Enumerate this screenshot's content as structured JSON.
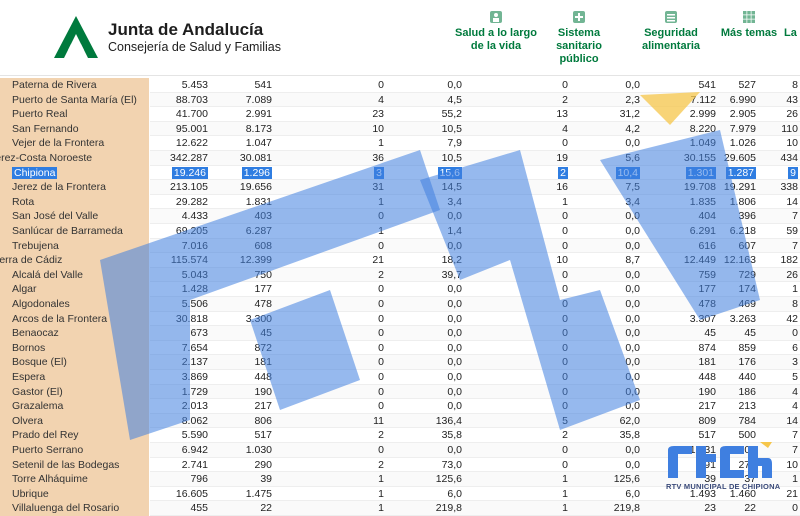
{
  "header": {
    "title": "Junta de Andalucía",
    "subtitle": "Consejería de Salud y Familias",
    "brand_color": "#007a3d"
  },
  "nav": [
    {
      "label": "Salud a lo largo\nde la vida",
      "icon": "person-icon"
    },
    {
      "label": "Sistema\nsanitario\npúblico",
      "icon": "hospital-icon"
    },
    {
      "label": "Seguridad\nalimentaria",
      "icon": "food-icon"
    },
    {
      "label": "Más temas",
      "icon": "grid-icon"
    },
    {
      "label": "La",
      "icon": ""
    }
  ],
  "table": {
    "rows": [
      {
        "name": "Paterna de Rivera",
        "v": [
          "5.453",
          "541",
          "0",
          "0,0",
          "0",
          "0,0",
          "541",
          "527",
          "8"
        ]
      },
      {
        "name": "Puerto de Santa María (El)",
        "v": [
          "88.703",
          "7.089",
          "4",
          "4,5",
          "2",
          "2,3",
          "7.112",
          "6.990",
          "43"
        ]
      },
      {
        "name": "Puerto Real",
        "v": [
          "41.700",
          "2.991",
          "23",
          "55,2",
          "13",
          "31,2",
          "2.999",
          "2.905",
          "26"
        ]
      },
      {
        "name": "San Fernando",
        "v": [
          "95.001",
          "8.173",
          "10",
          "10,5",
          "4",
          "4,2",
          "8.220",
          "7.979",
          "110"
        ]
      },
      {
        "name": "Vejer de la Frontera",
        "v": [
          "12.622",
          "1.047",
          "1",
          "7,9",
          "0",
          "0,0",
          "1.049",
          "1.026",
          "10"
        ]
      },
      {
        "name": "Jerez-Costa Noroeste",
        "v": [
          "342.287",
          "30.081",
          "36",
          "10,5",
          "19",
          "5,6",
          "30.155",
          "29.605",
          "434"
        ],
        "group": true
      },
      {
        "name": "Chipiona",
        "v": [
          "19.246",
          "1.296",
          "3",
          "15,6",
          "2",
          "10,4",
          "1.301",
          "1.287",
          "9"
        ],
        "selected": true
      },
      {
        "name": "Jerez de la Frontera",
        "v": [
          "213.105",
          "19.656",
          "31",
          "14,5",
          "16",
          "7,5",
          "19.708",
          "19.291",
          "338"
        ]
      },
      {
        "name": "Rota",
        "v": [
          "29.282",
          "1.831",
          "1",
          "3,4",
          "1",
          "3,4",
          "1.835",
          "1.806",
          "14"
        ]
      },
      {
        "name": "San José del Valle",
        "v": [
          "4.433",
          "403",
          "0",
          "0,0",
          "0",
          "0,0",
          "404",
          "396",
          "7"
        ]
      },
      {
        "name": "Sanlúcar de Barrameda",
        "v": [
          "69.205",
          "6.287",
          "1",
          "1,4",
          "0",
          "0,0",
          "6.291",
          "6.218",
          "59"
        ]
      },
      {
        "name": "Trebujena",
        "v": [
          "7.016",
          "608",
          "0",
          "0,0",
          "0",
          "0,0",
          "616",
          "607",
          "7"
        ]
      },
      {
        "name": "Sierra de Cádiz",
        "v": [
          "115.574",
          "12.399",
          "21",
          "18,2",
          "10",
          "8,7",
          "12.449",
          "12.163",
          "182"
        ],
        "group": true
      },
      {
        "name": "Alcalá del Valle",
        "v": [
          "5.043",
          "750",
          "2",
          "39,7",
          "0",
          "0,0",
          "759",
          "729",
          "26"
        ]
      },
      {
        "name": "Algar",
        "v": [
          "1.428",
          "177",
          "0",
          "0,0",
          "0",
          "0,0",
          "177",
          "174",
          "1"
        ]
      },
      {
        "name": "Algodonales",
        "v": [
          "5.506",
          "478",
          "0",
          "0,0",
          "0",
          "0,0",
          "478",
          "469",
          "8"
        ]
      },
      {
        "name": "Arcos de la Frontera",
        "v": [
          "30.818",
          "3.300",
          "0",
          "0,0",
          "0",
          "0,0",
          "3.307",
          "3.263",
          "42"
        ]
      },
      {
        "name": "Benaocaz",
        "v": [
          "673",
          "45",
          "0",
          "0,0",
          "0",
          "0,0",
          "45",
          "45",
          "0"
        ]
      },
      {
        "name": "Bornos",
        "v": [
          "7.654",
          "872",
          "0",
          "0,0",
          "0",
          "0,0",
          "874",
          "859",
          "6"
        ]
      },
      {
        "name": "Bosque (El)",
        "v": [
          "2.137",
          "181",
          "0",
          "0,0",
          "0",
          "0,0",
          "181",
          "176",
          "3"
        ]
      },
      {
        "name": "Espera",
        "v": [
          "3.869",
          "448",
          "0",
          "0,0",
          "0",
          "0,0",
          "448",
          "440",
          "5"
        ]
      },
      {
        "name": "Gastor (El)",
        "v": [
          "1.729",
          "190",
          "0",
          "0,0",
          "0",
          "0,0",
          "190",
          "186",
          "4"
        ]
      },
      {
        "name": "Grazalema",
        "v": [
          "2.013",
          "217",
          "0",
          "0,0",
          "0",
          "0,0",
          "217",
          "213",
          "4"
        ]
      },
      {
        "name": "Olvera",
        "v": [
          "8.062",
          "806",
          "11",
          "136,4",
          "5",
          "62,0",
          "809",
          "784",
          "14"
        ]
      },
      {
        "name": "Prado del Rey",
        "v": [
          "5.590",
          "517",
          "2",
          "35,8",
          "2",
          "35,8",
          "517",
          "500",
          "7"
        ]
      },
      {
        "name": "Puerto Serrano",
        "v": [
          "6.942",
          "1.030",
          "0",
          "0,0",
          "0",
          "0,0",
          "1.031",
          "1.006",
          "7"
        ]
      },
      {
        "name": "Setenil de las Bodegas",
        "v": [
          "2.741",
          "290",
          "2",
          "73,0",
          "0",
          "0,0",
          "291",
          "270",
          "10"
        ]
      },
      {
        "name": "Torre Alháquime",
        "v": [
          "796",
          "39",
          "1",
          "125,6",
          "1",
          "125,6",
          "39",
          "37",
          "1"
        ]
      },
      {
        "name": "Ubrique",
        "v": [
          "16.605",
          "1.475",
          "1",
          "6,0",
          "1",
          "6,0",
          "1.493",
          "1.460",
          "21"
        ]
      },
      {
        "name": "Villaluenga del Rosario",
        "v": [
          "455",
          "22",
          "1",
          "219,8",
          "1",
          "219,8",
          "23",
          "22",
          "0"
        ]
      }
    ]
  },
  "watermark": {
    "brand": "rtvch",
    "caption": "RTV MUNICIPAL DE CHIPIONA",
    "color": "#3f7fe0"
  }
}
